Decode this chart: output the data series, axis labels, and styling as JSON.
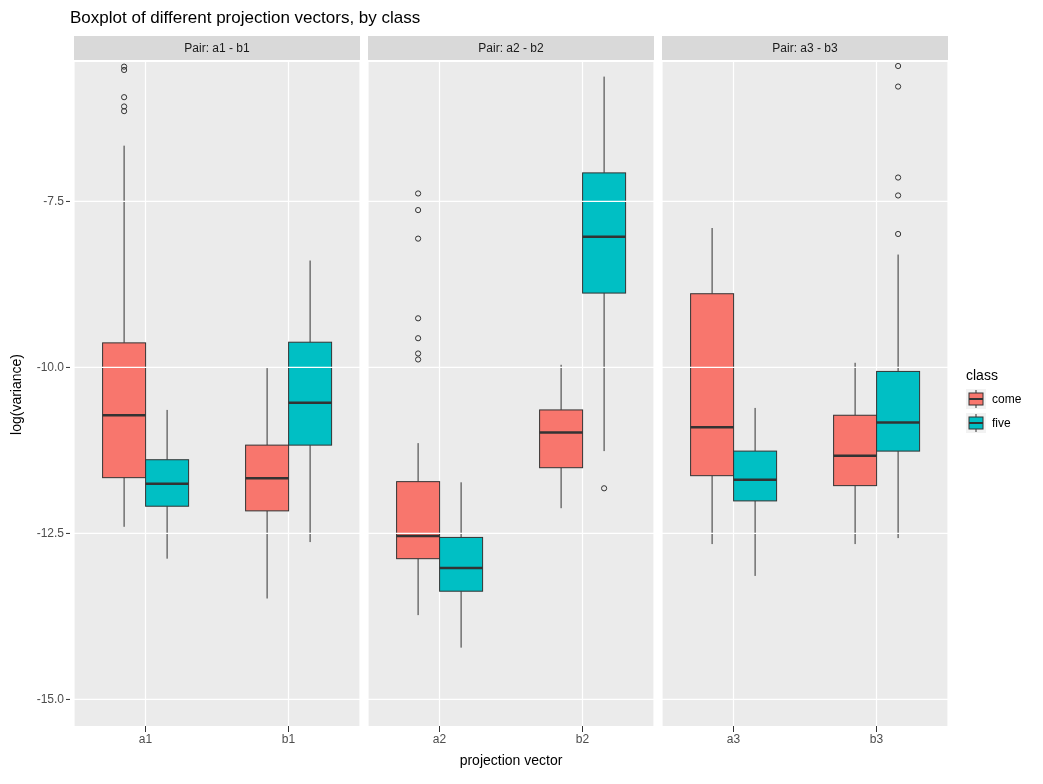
{
  "chart_data": [
    {
      "type": "box",
      "title": "Boxplot of different projection vectors, by class",
      "subtitle": "Pair: a1 - b1",
      "ylabel": "log(variance)",
      "categories": [
        "a1",
        "b1"
      ],
      "series": [
        {
          "name": "come",
          "color": "#f8766d",
          "boxes": [
            {
              "low": -12.4,
              "q1": -11.66,
              "median": -10.72,
              "q3": -9.63,
              "high": -6.66,
              "outliers": [
                -5.47,
                -5.52,
                -5.93,
                -6.07,
                -6.14
              ]
            },
            {
              "low": -13.48,
              "q1": -12.16,
              "median": -11.67,
              "q3": -11.17,
              "high": -10.01
            }
          ]
        },
        {
          "name": "five",
          "color": "#00bfc4",
          "boxes": [
            {
              "low": -12.88,
              "q1": -12.09,
              "median": -11.75,
              "q3": -11.39,
              "high": -10.64
            },
            {
              "low": -12.63,
              "q1": -11.17,
              "median": -10.53,
              "q3": -9.62,
              "high": -8.39
            }
          ]
        }
      ],
      "ylim": [
        -15.4,
        -5.4
      ],
      "yticks": [
        {
          "value": -15,
          "label": "-15.0"
        },
        -12.5,
        {
          "value": -10,
          "label": "-10.0"
        },
        -7.5
      ],
      "grid": true,
      "legend": "right",
      "legend_title": "class"
    },
    {
      "type": "box",
      "subtitle": "Pair: a2 - b2",
      "xlabel": "projection vector",
      "categories": [
        "a2",
        "b2"
      ],
      "series": [
        {
          "color": "#f8766d",
          "boxes": [
            {
              "low": -13.73,
              "q1": -12.88,
              "median": -12.54,
              "q3": -11.72,
              "high": -11.14,
              "outliers": [
                -7.38,
                -7.63,
                -8.06,
                -9.26,
                -9.56,
                -9.79,
                -9.88
              ]
            },
            {
              "low": -12.12,
              "q1": -11.51,
              "median": -10.98,
              "q3": -10.64,
              "high": -9.96
            }
          ]
        },
        {
          "color": "#00bfc4",
          "boxes": [
            {
              "low": -14.22,
              "q1": -13.37,
              "median": -13.02,
              "q3": -12.56,
              "high": -11.73
            },
            {
              "low": -11.26,
              "q1": -8.88,
              "median": -8.03,
              "q3": -7.07,
              "high": -5.62,
              "outliers": [
                -11.82
              ]
            }
          ]
        }
      ],
      "ylim": [
        -15.4,
        -5.4
      ],
      "yticks": [
        {
          "value": -15,
          "label": null
        },
        {
          "value": -12.5,
          "label": null
        },
        {
          "value": -10,
          "label": null
        },
        {
          "value": -7.5,
          "label": null
        }
      ],
      "grid": true,
      "tick_labels": "x"
    },
    {
      "type": "box",
      "subtitle": "Pair: a3 - b3",
      "categories": [
        "a3",
        "b3"
      ],
      "series": [
        {
          "color": "#f8766d",
          "boxes": [
            {
              "low": -12.66,
              "q1": -11.63,
              "median": -10.9,
              "q3": -8.89,
              "high": -7.9
            },
            {
              "low": -12.66,
              "q1": -11.78,
              "median": -11.33,
              "q3": -10.72,
              "high": -9.93
            }
          ]
        },
        {
          "color": "#00bfc4",
          "boxes": [
            {
              "low": -13.14,
              "q1": -12.01,
              "median": -11.69,
              "q3": -11.26,
              "high": -10.61
            },
            {
              "low": -12.57,
              "q1": -11.26,
              "median": -10.83,
              "q3": -10.06,
              "high": -8.3,
              "outliers": [
                -5.46,
                -5.77,
                -7.14,
                -7.41,
                -7.99
              ]
            }
          ]
        }
      ],
      "ylim": [
        -15.4,
        -5.4
      ],
      "yticks": [
        {
          "value": -15,
          "label": null
        },
        {
          "value": -12.5,
          "label": null
        },
        {
          "value": -10,
          "label": null
        },
        {
          "value": -7.5,
          "label": null
        }
      ],
      "grid": true,
      "tick_labels": "x"
    }
  ]
}
